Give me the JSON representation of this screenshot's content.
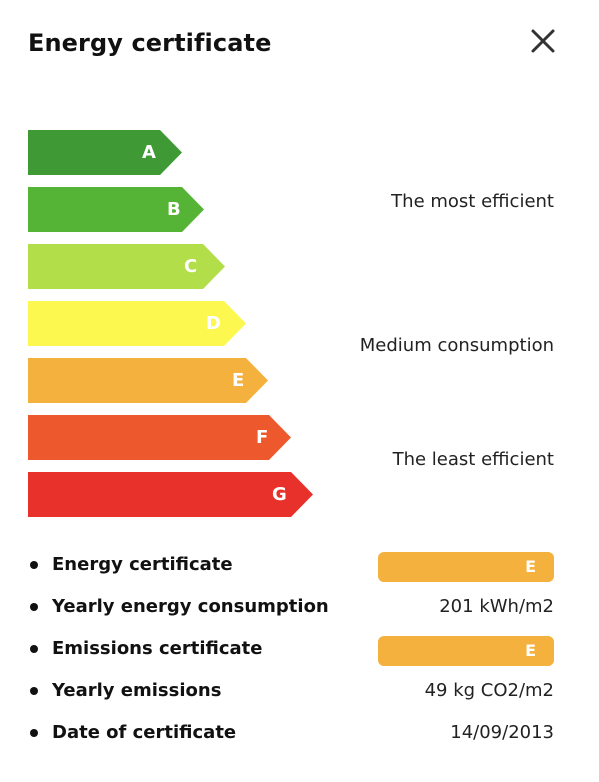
{
  "header": {
    "title": "Energy certificate",
    "close_icon": "close-icon"
  },
  "scale": {
    "bars": [
      {
        "letter": "A",
        "color": "#3f9a36"
      },
      {
        "letter": "B",
        "color": "#55b436"
      },
      {
        "letter": "C",
        "color": "#b2de4a"
      },
      {
        "letter": "D",
        "color": "#fcf850"
      },
      {
        "letter": "E",
        "color": "#f4b13d"
      },
      {
        "letter": "F",
        "color": "#ee582d"
      },
      {
        "letter": "G",
        "color": "#e8312a"
      }
    ],
    "labels": {
      "most": "The most efficient",
      "medium": "Medium consumption",
      "least": "The least efficient"
    }
  },
  "details": [
    {
      "label": "Energy certificate",
      "badge": "E",
      "badge_color": "#f4b13d"
    },
    {
      "label": "Yearly energy consumption",
      "value": "201 kWh/m2"
    },
    {
      "label": "Emissions certificate",
      "badge": "E",
      "badge_color": "#f4b13d"
    },
    {
      "label": "Yearly emissions",
      "value": "49 kg CO2/m2"
    },
    {
      "label": "Date of certificate",
      "value": "14/09/2013"
    }
  ]
}
